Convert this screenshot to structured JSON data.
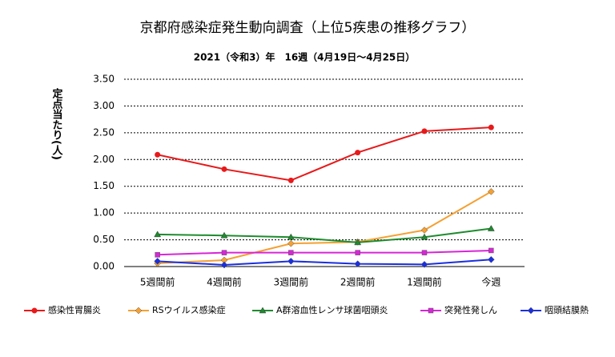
{
  "chart_data": {
    "type": "line",
    "title": "京都府感染症発生動向調査（上位5疾患の推移グラフ）",
    "subtitle": "2021（令和3）年　16週（4月19日～4月25日）",
    "y_label": "定点当たり(人)",
    "categories": [
      "5週間前",
      "4週間前",
      "3週間前",
      "2週間前",
      "1週間前",
      "今週"
    ],
    "ylim": [
      0,
      3.5
    ],
    "yticks": [
      {
        "value": 0,
        "label": "0.00"
      },
      {
        "value": 0.5,
        "label": "0.50"
      },
      {
        "value": 1,
        "label": "1.00"
      },
      {
        "value": 1.5,
        "label": "1.50"
      },
      {
        "value": 2,
        "label": "2.00"
      },
      {
        "value": 2.5,
        "label": "2.50"
      },
      {
        "value": 3,
        "label": "3.00"
      },
      {
        "value": 3.5,
        "label": "3.50"
      }
    ],
    "grid": true,
    "legend": "bottom",
    "series": [
      {
        "name": "感染性胃腸炎",
        "color": "#e8191a",
        "marker": "circle",
        "values": [
          2.09,
          1.82,
          1.61,
          2.13,
          2.53,
          2.6
        ]
      },
      {
        "name": "RSウイルス感染症",
        "color": "#f5a031",
        "marker": "diamond",
        "values": [
          0.06,
          0.12,
          0.43,
          0.46,
          0.68,
          1.4
        ]
      },
      {
        "name": "A群溶血性レンサ球菌咽頭炎",
        "color": "#1e8c2e",
        "marker": "triangle",
        "values": [
          0.6,
          0.58,
          0.55,
          0.45,
          0.55,
          0.71
        ]
      },
      {
        "name": "突発性発しん",
        "color": "#d825d8",
        "marker": "square",
        "values": [
          0.22,
          0.26,
          0.26,
          0.26,
          0.26,
          0.3
        ]
      },
      {
        "name": "咽頭結膜熱",
        "color": "#1a2fe0",
        "marker": "diamond",
        "values": [
          0.1,
          0.03,
          0.1,
          0.05,
          0.04,
          0.13
        ]
      }
    ]
  }
}
